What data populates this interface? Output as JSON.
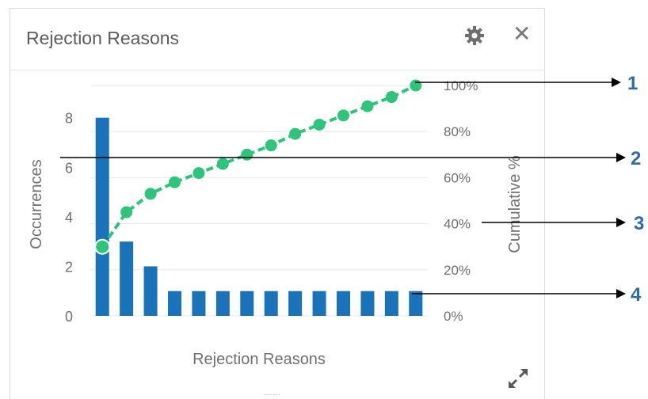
{
  "panel": {
    "title": "Rejection Reasons",
    "settings_icon": "gear-icon",
    "close_icon": "close-icon",
    "close_glyph": "✕",
    "expand_icon": "expand-icon",
    "grip_glyph": "……"
  },
  "chart_data": {
    "type": "bar",
    "title": "",
    "xlabel": "Rejection Reasons",
    "ylabel": "Occurrences",
    "y2label": "Cumulative %",
    "ylim": [
      0,
      9.3
    ],
    "y_ticks": [
      "0",
      "2",
      "4",
      "6",
      "8"
    ],
    "y2lim": [
      0,
      1.0
    ],
    "y2_ticks": [
      "0%",
      "20%",
      "40%",
      "60%",
      "80%",
      "100%"
    ],
    "grid": true,
    "series": [
      {
        "name": "Occurrences",
        "type": "bar",
        "color": "#1a73b8",
        "values": [
          8,
          3,
          2,
          1,
          1,
          1,
          1,
          1,
          1,
          1,
          1,
          1,
          1,
          1
        ]
      },
      {
        "name": "Cumulative %",
        "type": "line",
        "color": "#2ec47a",
        "dashed": true,
        "values": [
          0.3,
          0.45,
          0.53,
          0.58,
          0.62,
          0.66,
          0.7,
          0.74,
          0.79,
          0.83,
          0.87,
          0.91,
          0.95,
          1.0
        ]
      }
    ]
  },
  "callouts": [
    "1",
    "2",
    "3",
    "4"
  ],
  "colors": {
    "bar": "#1a73b8",
    "line": "#2ec47a",
    "callout": "#2f6ca8",
    "grid": "#e8e8e8"
  }
}
